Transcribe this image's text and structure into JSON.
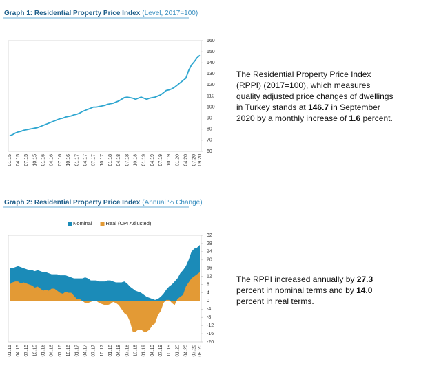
{
  "chart_data": [
    {
      "type": "line",
      "title": "Graph 1: Residential Property Price Index",
      "subtitle": "(Level, 2017=100)",
      "categories": [
        "01.15",
        null,
        null,
        "04.15",
        null,
        null,
        "07.15",
        null,
        null,
        "10.15",
        null,
        null,
        "01.16",
        null,
        null,
        "04.16",
        null,
        null,
        "07.16",
        null,
        null,
        "10.16",
        null,
        null,
        "01.17",
        null,
        null,
        "04.17",
        null,
        null,
        "07.17",
        null,
        null,
        "10.17",
        null,
        null,
        "01.18",
        null,
        null,
        "04.18",
        null,
        null,
        "07.18",
        null,
        null,
        "10.18",
        null,
        null,
        "01.19",
        null,
        null,
        "04.19",
        null,
        null,
        "07.19",
        null,
        null,
        "10.19",
        null,
        null,
        "01.20",
        null,
        null,
        "04.20",
        null,
        null,
        "07.20",
        null,
        "09.20"
      ],
      "series": [
        {
          "name": "RPPI",
          "color": "#2ea6d0",
          "values": [
            74,
            75,
            76.5,
            77.5,
            78,
            79,
            79.5,
            80,
            80.5,
            81,
            81.5,
            82.5,
            83.5,
            84.5,
            85.5,
            86.5,
            87.5,
            88.5,
            89.5,
            90,
            91,
            91.5,
            92,
            93,
            93.5,
            94.5,
            96,
            97,
            98,
            99,
            100,
            100,
            100.5,
            101,
            101.5,
            102.5,
            103,
            103.5,
            104.5,
            105.5,
            107,
            108.5,
            109,
            108.5,
            108,
            107,
            108,
            109,
            108,
            107,
            108,
            108.5,
            109,
            110,
            111,
            113,
            115,
            115.5,
            116.5,
            118,
            120,
            122,
            124,
            126,
            133,
            138,
            141,
            144.5,
            146.7
          ]
        }
      ],
      "ylim": [
        60,
        160
      ],
      "yticks": [
        60,
        70,
        80,
        90,
        100,
        110,
        120,
        130,
        140,
        150,
        160
      ],
      "legend": false
    },
    {
      "type": "area",
      "title": "Graph 2: Residential Property Price Index",
      "subtitle": "(Annual % Change)",
      "categories": [
        "01.15",
        null,
        null,
        "04.15",
        null,
        null,
        "07.15",
        null,
        null,
        "10.15",
        null,
        null,
        "01.16",
        null,
        null,
        "04.16",
        null,
        null,
        "07.16",
        null,
        null,
        "10.16",
        null,
        null,
        "01.17",
        null,
        null,
        "04.17",
        null,
        null,
        "07.17",
        null,
        null,
        "10.17",
        null,
        null,
        "01.18",
        null,
        null,
        "04.18",
        null,
        null,
        "07.18",
        null,
        null,
        "10.18",
        null,
        null,
        "01.19",
        null,
        null,
        "04.19",
        null,
        null,
        "07.19",
        null,
        null,
        "10.19",
        null,
        null,
        "01.20",
        null,
        null,
        "04.20",
        null,
        null,
        "07.20",
        null,
        "09.20"
      ],
      "series": [
        {
          "name": "Nominal",
          "color": "#1b8bb8",
          "values": [
            16,
            16,
            16.5,
            17,
            16.5,
            16,
            15.5,
            15,
            15,
            14.5,
            15,
            14.5,
            14,
            14,
            13.5,
            13,
            13,
            13,
            12.5,
            12.5,
            12.5,
            12,
            11.5,
            11,
            11,
            11,
            11,
            11.5,
            11,
            10,
            10,
            10,
            9.5,
            9.5,
            9.5,
            10,
            10,
            9.5,
            9,
            9,
            9,
            9.5,
            8.5,
            7,
            6,
            5,
            4.5,
            4,
            3,
            2,
            1.5,
            1,
            0.5,
            1,
            2,
            3.5,
            5.5,
            7,
            8,
            9.5,
            11,
            13.5,
            15,
            17,
            20,
            24,
            25.5,
            26,
            27.3
          ]
        },
        {
          "name": "Real (CPI Adjusted)",
          "color": "#e39a35",
          "values": [
            8,
            9,
            9.5,
            9.5,
            8.5,
            9,
            8.5,
            8,
            7.5,
            6.5,
            7,
            6,
            5,
            5.5,
            5,
            6,
            6,
            5,
            4,
            3.5,
            4.5,
            4,
            4,
            2.5,
            1,
            1,
            0,
            -1,
            -1,
            -0.5,
            0,
            0,
            -1,
            -1.5,
            -2,
            -2,
            -1.5,
            -0.5,
            -1,
            -2,
            -4,
            -6,
            -7,
            -10,
            -15,
            -15,
            -14,
            -14,
            -15,
            -15,
            -14,
            -12,
            -11,
            -7,
            -5,
            -1,
            0.5,
            0.5,
            -1,
            -2,
            1,
            2,
            3,
            7,
            9,
            11,
            12,
            13,
            14
          ]
        }
      ],
      "ylim": [
        -20,
        32
      ],
      "yticks": [
        -20,
        -16,
        -12,
        -8,
        -4,
        0,
        4,
        8,
        12,
        16,
        20,
        24,
        28,
        32
      ],
      "legend": "top"
    }
  ],
  "paragraphs": [
    [
      "The Residential Property Price Index (RPPI) (2017=100), which measures quality adjusted price changes of dwellings in Turkey stands at ",
      "146.7",
      "  in September 2020 by a monthly increase of ",
      "1.6",
      " percent."
    ],
    [
      "The RPPI increased annually by ",
      "27.3",
      " percent in nominal terms and by ",
      "14.0",
      "  percent in real terms."
    ]
  ]
}
